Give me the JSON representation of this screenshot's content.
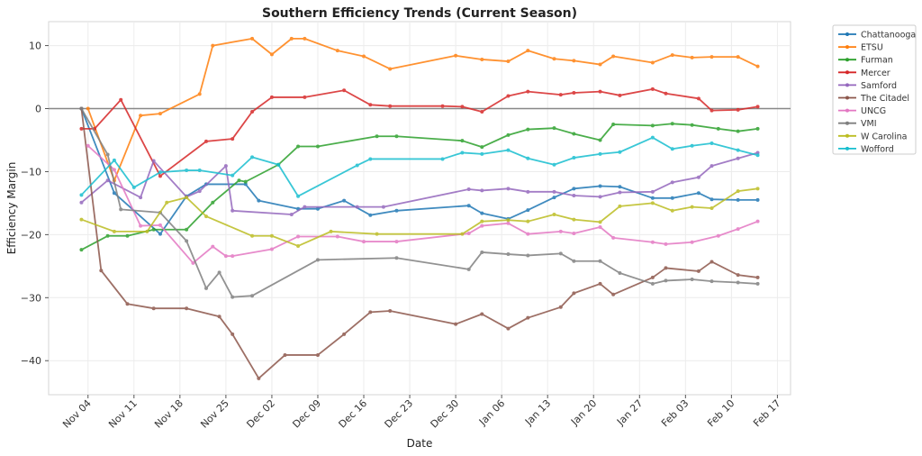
{
  "chart_data": {
    "type": "line",
    "title": "Southern Efficiency Trends (Current Season)",
    "xlabel": "Date",
    "ylabel": "Efficiency Margin",
    "xlim": [
      "Oct 29",
      "Feb 19"
    ],
    "ylim": [
      -45.4,
      13.8
    ],
    "xticks": [
      "Nov 04",
      "Nov 11",
      "Nov 18",
      "Nov 25",
      "Dec 02",
      "Dec 09",
      "Dec 16",
      "Dec 23",
      "Dec 30",
      "Jan 06",
      "Jan 13",
      "Jan 20",
      "Jan 27",
      "Feb 03",
      "Feb 10",
      "Feb 17"
    ],
    "yticks": [
      -40,
      -30,
      -20,
      -10,
      0,
      10
    ],
    "grid": true,
    "reference_line_y": 0,
    "legend_position": "outside-top-right",
    "series": [
      {
        "name": "Chattanooga",
        "color": "#1f77b4",
        "points": [
          [
            "Nov 03",
            0
          ],
          [
            "Nov 08",
            -13.4
          ],
          [
            "Nov 15",
            -19.9
          ],
          [
            "Nov 19",
            -13.9
          ],
          [
            "Nov 22",
            -12.0
          ],
          [
            "Nov 28",
            -12.0
          ],
          [
            "Nov 30",
            -14.6
          ],
          [
            "Dec 06",
            -15.9
          ],
          [
            "Dec 09",
            -15.9
          ],
          [
            "Dec 13",
            -14.6
          ],
          [
            "Dec 17",
            -16.9
          ],
          [
            "Dec 21",
            -16.2
          ],
          [
            "Jan 01",
            -15.4
          ],
          [
            "Jan 03",
            -16.6
          ],
          [
            "Jan 07",
            -17.5
          ],
          [
            "Jan 10",
            -16.1
          ],
          [
            "Jan 14",
            -14.1
          ],
          [
            "Jan 17",
            -12.7
          ],
          [
            "Jan 21",
            -12.3
          ],
          [
            "Jan 24",
            -12.4
          ],
          [
            "Jan 29",
            -14.2
          ],
          [
            "Feb 01",
            -14.2
          ],
          [
            "Feb 05",
            -13.4
          ],
          [
            "Feb 07",
            -14.4
          ],
          [
            "Feb 11",
            -14.5
          ],
          [
            "Feb 14",
            -14.5
          ]
        ]
      },
      {
        "name": "ETSU",
        "color": "#ff7f0e",
        "points": [
          [
            "Nov 04",
            0
          ],
          [
            "Nov 08",
            -11.4
          ],
          [
            "Nov 12",
            -1.1
          ],
          [
            "Nov 15",
            -0.8
          ],
          [
            "Nov 21",
            2.3
          ],
          [
            "Nov 23",
            10.0
          ],
          [
            "Nov 29",
            11.1
          ],
          [
            "Dec 02",
            8.6
          ],
          [
            "Dec 05",
            11.1
          ],
          [
            "Dec 07",
            11.1
          ],
          [
            "Dec 12",
            9.2
          ],
          [
            "Dec 16",
            8.3
          ],
          [
            "Dec 20",
            6.3
          ],
          [
            "Dec 30",
            8.4
          ],
          [
            "Jan 03",
            7.8
          ],
          [
            "Jan 07",
            7.5
          ],
          [
            "Jan 10",
            9.2
          ],
          [
            "Jan 14",
            7.9
          ],
          [
            "Jan 17",
            7.6
          ],
          [
            "Jan 21",
            7.0
          ],
          [
            "Jan 23",
            8.3
          ],
          [
            "Jan 29",
            7.3
          ],
          [
            "Feb 01",
            8.5
          ],
          [
            "Feb 04",
            8.1
          ],
          [
            "Feb 07",
            8.2
          ],
          [
            "Feb 11",
            8.2
          ],
          [
            "Feb 14",
            6.7
          ]
        ]
      },
      {
        "name": "Furman",
        "color": "#2ca02c",
        "points": [
          [
            "Nov 03",
            -22.4
          ],
          [
            "Nov 07",
            -20.2
          ],
          [
            "Nov 10",
            -20.2
          ],
          [
            "Nov 14",
            -19.2
          ],
          [
            "Nov 19",
            -19.2
          ],
          [
            "Nov 23",
            -14.9
          ],
          [
            "Nov 27",
            -11.4
          ],
          [
            "Nov 28",
            -11.6
          ],
          [
            "Dec 03",
            -8.9
          ],
          [
            "Dec 06",
            -6.0
          ],
          [
            "Dec 09",
            -6.0
          ],
          [
            "Dec 18",
            -4.4
          ],
          [
            "Dec 21",
            -4.4
          ],
          [
            "Dec 31",
            -5.1
          ],
          [
            "Jan 03",
            -6.1
          ],
          [
            "Jan 07",
            -4.2
          ],
          [
            "Jan 10",
            -3.3
          ],
          [
            "Jan 14",
            -3.1
          ],
          [
            "Jan 17",
            -4.0
          ],
          [
            "Jan 21",
            -5.0
          ],
          [
            "Jan 23",
            -2.5
          ],
          [
            "Jan 29",
            -2.7
          ],
          [
            "Feb 01",
            -2.4
          ],
          [
            "Feb 04",
            -2.6
          ],
          [
            "Feb 08",
            -3.2
          ],
          [
            "Feb 11",
            -3.6
          ],
          [
            "Feb 14",
            -3.2
          ]
        ]
      },
      {
        "name": "Mercer",
        "color": "#d62728",
        "points": [
          [
            "Nov 03",
            -3.2
          ],
          [
            "Nov 05",
            -3.2
          ],
          [
            "Nov 09",
            1.4
          ],
          [
            "Nov 15",
            -10.7
          ],
          [
            "Nov 22",
            -5.2
          ],
          [
            "Nov 26",
            -4.8
          ],
          [
            "Nov 29",
            -0.5
          ],
          [
            "Dec 02",
            1.8
          ],
          [
            "Dec 07",
            1.8
          ],
          [
            "Dec 13",
            2.9
          ],
          [
            "Dec 17",
            0.6
          ],
          [
            "Dec 20",
            0.4
          ],
          [
            "Dec 28",
            0.4
          ],
          [
            "Dec 31",
            0.3
          ],
          [
            "Jan 03",
            -0.5
          ],
          [
            "Jan 07",
            2.0
          ],
          [
            "Jan 10",
            2.7
          ],
          [
            "Jan 15",
            2.2
          ],
          [
            "Jan 17",
            2.5
          ],
          [
            "Jan 21",
            2.7
          ],
          [
            "Jan 24",
            2.1
          ],
          [
            "Jan 29",
            3.1
          ],
          [
            "Jan 31",
            2.4
          ],
          [
            "Feb 05",
            1.6
          ],
          [
            "Feb 07",
            -0.3
          ],
          [
            "Feb 11",
            -0.2
          ],
          [
            "Feb 14",
            0.3
          ]
        ]
      },
      {
        "name": "Samford",
        "color": "#9467bd",
        "points": [
          [
            "Nov 03",
            -14.9
          ],
          [
            "Nov 07",
            -11.4
          ],
          [
            "Nov 12",
            -14.1
          ],
          [
            "Nov 14",
            -8.3
          ],
          [
            "Nov 19",
            -14.0
          ],
          [
            "Nov 21",
            -13.1
          ],
          [
            "Nov 25",
            -9.1
          ],
          [
            "Nov 26",
            -16.2
          ],
          [
            "Dec 05",
            -16.8
          ],
          [
            "Dec 07",
            -15.6
          ],
          [
            "Dec 15",
            -15.6
          ],
          [
            "Dec 19",
            -15.6
          ],
          [
            "Jan 01",
            -12.8
          ],
          [
            "Jan 03",
            -13.0
          ],
          [
            "Jan 07",
            -12.7
          ],
          [
            "Jan 10",
            -13.2
          ],
          [
            "Jan 14",
            -13.2
          ],
          [
            "Jan 17",
            -13.8
          ],
          [
            "Jan 21",
            -14.0
          ],
          [
            "Jan 24",
            -13.3
          ],
          [
            "Jan 29",
            -13.2
          ],
          [
            "Feb 01",
            -11.7
          ],
          [
            "Feb 05",
            -10.9
          ],
          [
            "Feb 07",
            -9.1
          ],
          [
            "Feb 11",
            -7.9
          ],
          [
            "Feb 14",
            -7.0
          ]
        ]
      },
      {
        "name": "The Citadel",
        "color": "#8c564b",
        "points": [
          [
            "Nov 03",
            0
          ],
          [
            "Nov 06",
            -25.7
          ],
          [
            "Nov 10",
            -31.0
          ],
          [
            "Nov 14",
            -31.7
          ],
          [
            "Nov 19",
            -31.7
          ],
          [
            "Nov 24",
            -33.0
          ],
          [
            "Nov 26",
            -35.8
          ],
          [
            "Nov 30",
            -42.8
          ],
          [
            "Dec 04",
            -39.1
          ],
          [
            "Dec 09",
            -39.1
          ],
          [
            "Dec 13",
            -35.8
          ],
          [
            "Dec 17",
            -32.3
          ],
          [
            "Dec 20",
            -32.1
          ],
          [
            "Dec 30",
            -34.2
          ],
          [
            "Jan 03",
            -32.6
          ],
          [
            "Jan 07",
            -34.9
          ],
          [
            "Jan 10",
            -33.2
          ],
          [
            "Jan 15",
            -31.5
          ],
          [
            "Jan 17",
            -29.3
          ],
          [
            "Jan 21",
            -27.8
          ],
          [
            "Jan 23",
            -29.5
          ],
          [
            "Jan 29",
            -26.8
          ],
          [
            "Jan 31",
            -25.3
          ],
          [
            "Feb 05",
            -25.8
          ],
          [
            "Feb 07",
            -24.3
          ],
          [
            "Feb 11",
            -26.4
          ],
          [
            "Feb 14",
            -26.8
          ]
        ]
      },
      {
        "name": "UNCG",
        "color": "#e377c2",
        "points": [
          [
            "Nov 04",
            -5.9
          ],
          [
            "Nov 08",
            -9.7
          ],
          [
            "Nov 12",
            -18.6
          ],
          [
            "Nov 15",
            -18.5
          ],
          [
            "Nov 20",
            -24.5
          ],
          [
            "Nov 23",
            -21.9
          ],
          [
            "Nov 25",
            -23.4
          ],
          [
            "Nov 26",
            -23.4
          ],
          [
            "Dec 02",
            -22.3
          ],
          [
            "Dec 06",
            -20.3
          ],
          [
            "Dec 12",
            -20.3
          ],
          [
            "Dec 16",
            -21.1
          ],
          [
            "Dec 21",
            -21.1
          ],
          [
            "Jan 01",
            -19.8
          ],
          [
            "Jan 03",
            -18.6
          ],
          [
            "Jan 07",
            -18.2
          ],
          [
            "Jan 10",
            -19.9
          ],
          [
            "Jan 15",
            -19.5
          ],
          [
            "Jan 17",
            -19.8
          ],
          [
            "Jan 21",
            -18.8
          ],
          [
            "Jan 23",
            -20.5
          ],
          [
            "Jan 29",
            -21.2
          ],
          [
            "Jan 31",
            -21.5
          ],
          [
            "Feb 04",
            -21.2
          ],
          [
            "Feb 08",
            -20.2
          ],
          [
            "Feb 11",
            -19.1
          ],
          [
            "Feb 14",
            -17.9
          ]
        ]
      },
      {
        "name": "VMI",
        "color": "#7f7f7f",
        "points": [
          [
            "Nov 03",
            0
          ],
          [
            "Nov 07",
            -7.3
          ],
          [
            "Nov 09",
            -16.0
          ],
          [
            "Nov 15",
            -16.5
          ],
          [
            "Nov 19",
            -21.0
          ],
          [
            "Nov 22",
            -28.5
          ],
          [
            "Nov 24",
            -26.0
          ],
          [
            "Nov 26",
            -29.9
          ],
          [
            "Nov 29",
            -29.7
          ],
          [
            "Dec 09",
            -24.0
          ],
          [
            "Dec 21",
            -23.7
          ],
          [
            "Jan 01",
            -25.5
          ],
          [
            "Jan 03",
            -22.8
          ],
          [
            "Jan 07",
            -23.1
          ],
          [
            "Jan 10",
            -23.3
          ],
          [
            "Jan 15",
            -23.0
          ],
          [
            "Jan 17",
            -24.2
          ],
          [
            "Jan 21",
            -24.2
          ],
          [
            "Jan 24",
            -26.1
          ],
          [
            "Jan 29",
            -27.8
          ],
          [
            "Jan 31",
            -27.3
          ],
          [
            "Feb 04",
            -27.1
          ],
          [
            "Feb 07",
            -27.4
          ],
          [
            "Feb 11",
            -27.6
          ],
          [
            "Feb 14",
            -27.8
          ]
        ]
      },
      {
        "name": "W Carolina",
        "color": "#bcbd22",
        "points": [
          [
            "Nov 03",
            -17.6
          ],
          [
            "Nov 08",
            -19.5
          ],
          [
            "Nov 13",
            -19.5
          ],
          [
            "Nov 16",
            -14.9
          ],
          [
            "Nov 19",
            -14.1
          ],
          [
            "Nov 22",
            -17.1
          ],
          [
            "Nov 29",
            -20.2
          ],
          [
            "Dec 02",
            -20.2
          ],
          [
            "Dec 06",
            -21.8
          ],
          [
            "Dec 11",
            -19.5
          ],
          [
            "Dec 18",
            -19.9
          ],
          [
            "Dec 31",
            -19.9
          ],
          [
            "Jan 03",
            -17.9
          ],
          [
            "Jan 07",
            -17.7
          ],
          [
            "Jan 10",
            -17.9
          ],
          [
            "Jan 14",
            -16.8
          ],
          [
            "Jan 17",
            -17.6
          ],
          [
            "Jan 21",
            -18.0
          ],
          [
            "Jan 24",
            -15.5
          ],
          [
            "Jan 29",
            -15.0
          ],
          [
            "Feb 01",
            -16.2
          ],
          [
            "Feb 04",
            -15.6
          ],
          [
            "Feb 07",
            -15.8
          ],
          [
            "Feb 11",
            -13.1
          ],
          [
            "Feb 14",
            -12.7
          ]
        ]
      },
      {
        "name": "Wofford",
        "color": "#17becf",
        "points": [
          [
            "Nov 03",
            -13.7
          ],
          [
            "Nov 08",
            -8.2
          ],
          [
            "Nov 11",
            -12.5
          ],
          [
            "Nov 15",
            -10.1
          ],
          [
            "Nov 19",
            -9.8
          ],
          [
            "Nov 21",
            -9.8
          ],
          [
            "Nov 26",
            -10.6
          ],
          [
            "Nov 29",
            -7.7
          ],
          [
            "Dec 03",
            -8.9
          ],
          [
            "Dec 06",
            -13.9
          ],
          [
            "Dec 15",
            -9.0
          ],
          [
            "Dec 17",
            -8.0
          ],
          [
            "Dec 28",
            -8.0
          ],
          [
            "Dec 31",
            -7.0
          ],
          [
            "Jan 03",
            -7.2
          ],
          [
            "Jan 07",
            -6.6
          ],
          [
            "Jan 10",
            -7.9
          ],
          [
            "Jan 14",
            -8.9
          ],
          [
            "Jan 17",
            -7.8
          ],
          [
            "Jan 21",
            -7.2
          ],
          [
            "Jan 24",
            -6.9
          ],
          [
            "Jan 29",
            -4.6
          ],
          [
            "Feb 01",
            -6.4
          ],
          [
            "Feb 04",
            -5.9
          ],
          [
            "Feb 07",
            -5.5
          ],
          [
            "Feb 11",
            -6.6
          ],
          [
            "Feb 14",
            -7.4
          ]
        ]
      }
    ]
  }
}
